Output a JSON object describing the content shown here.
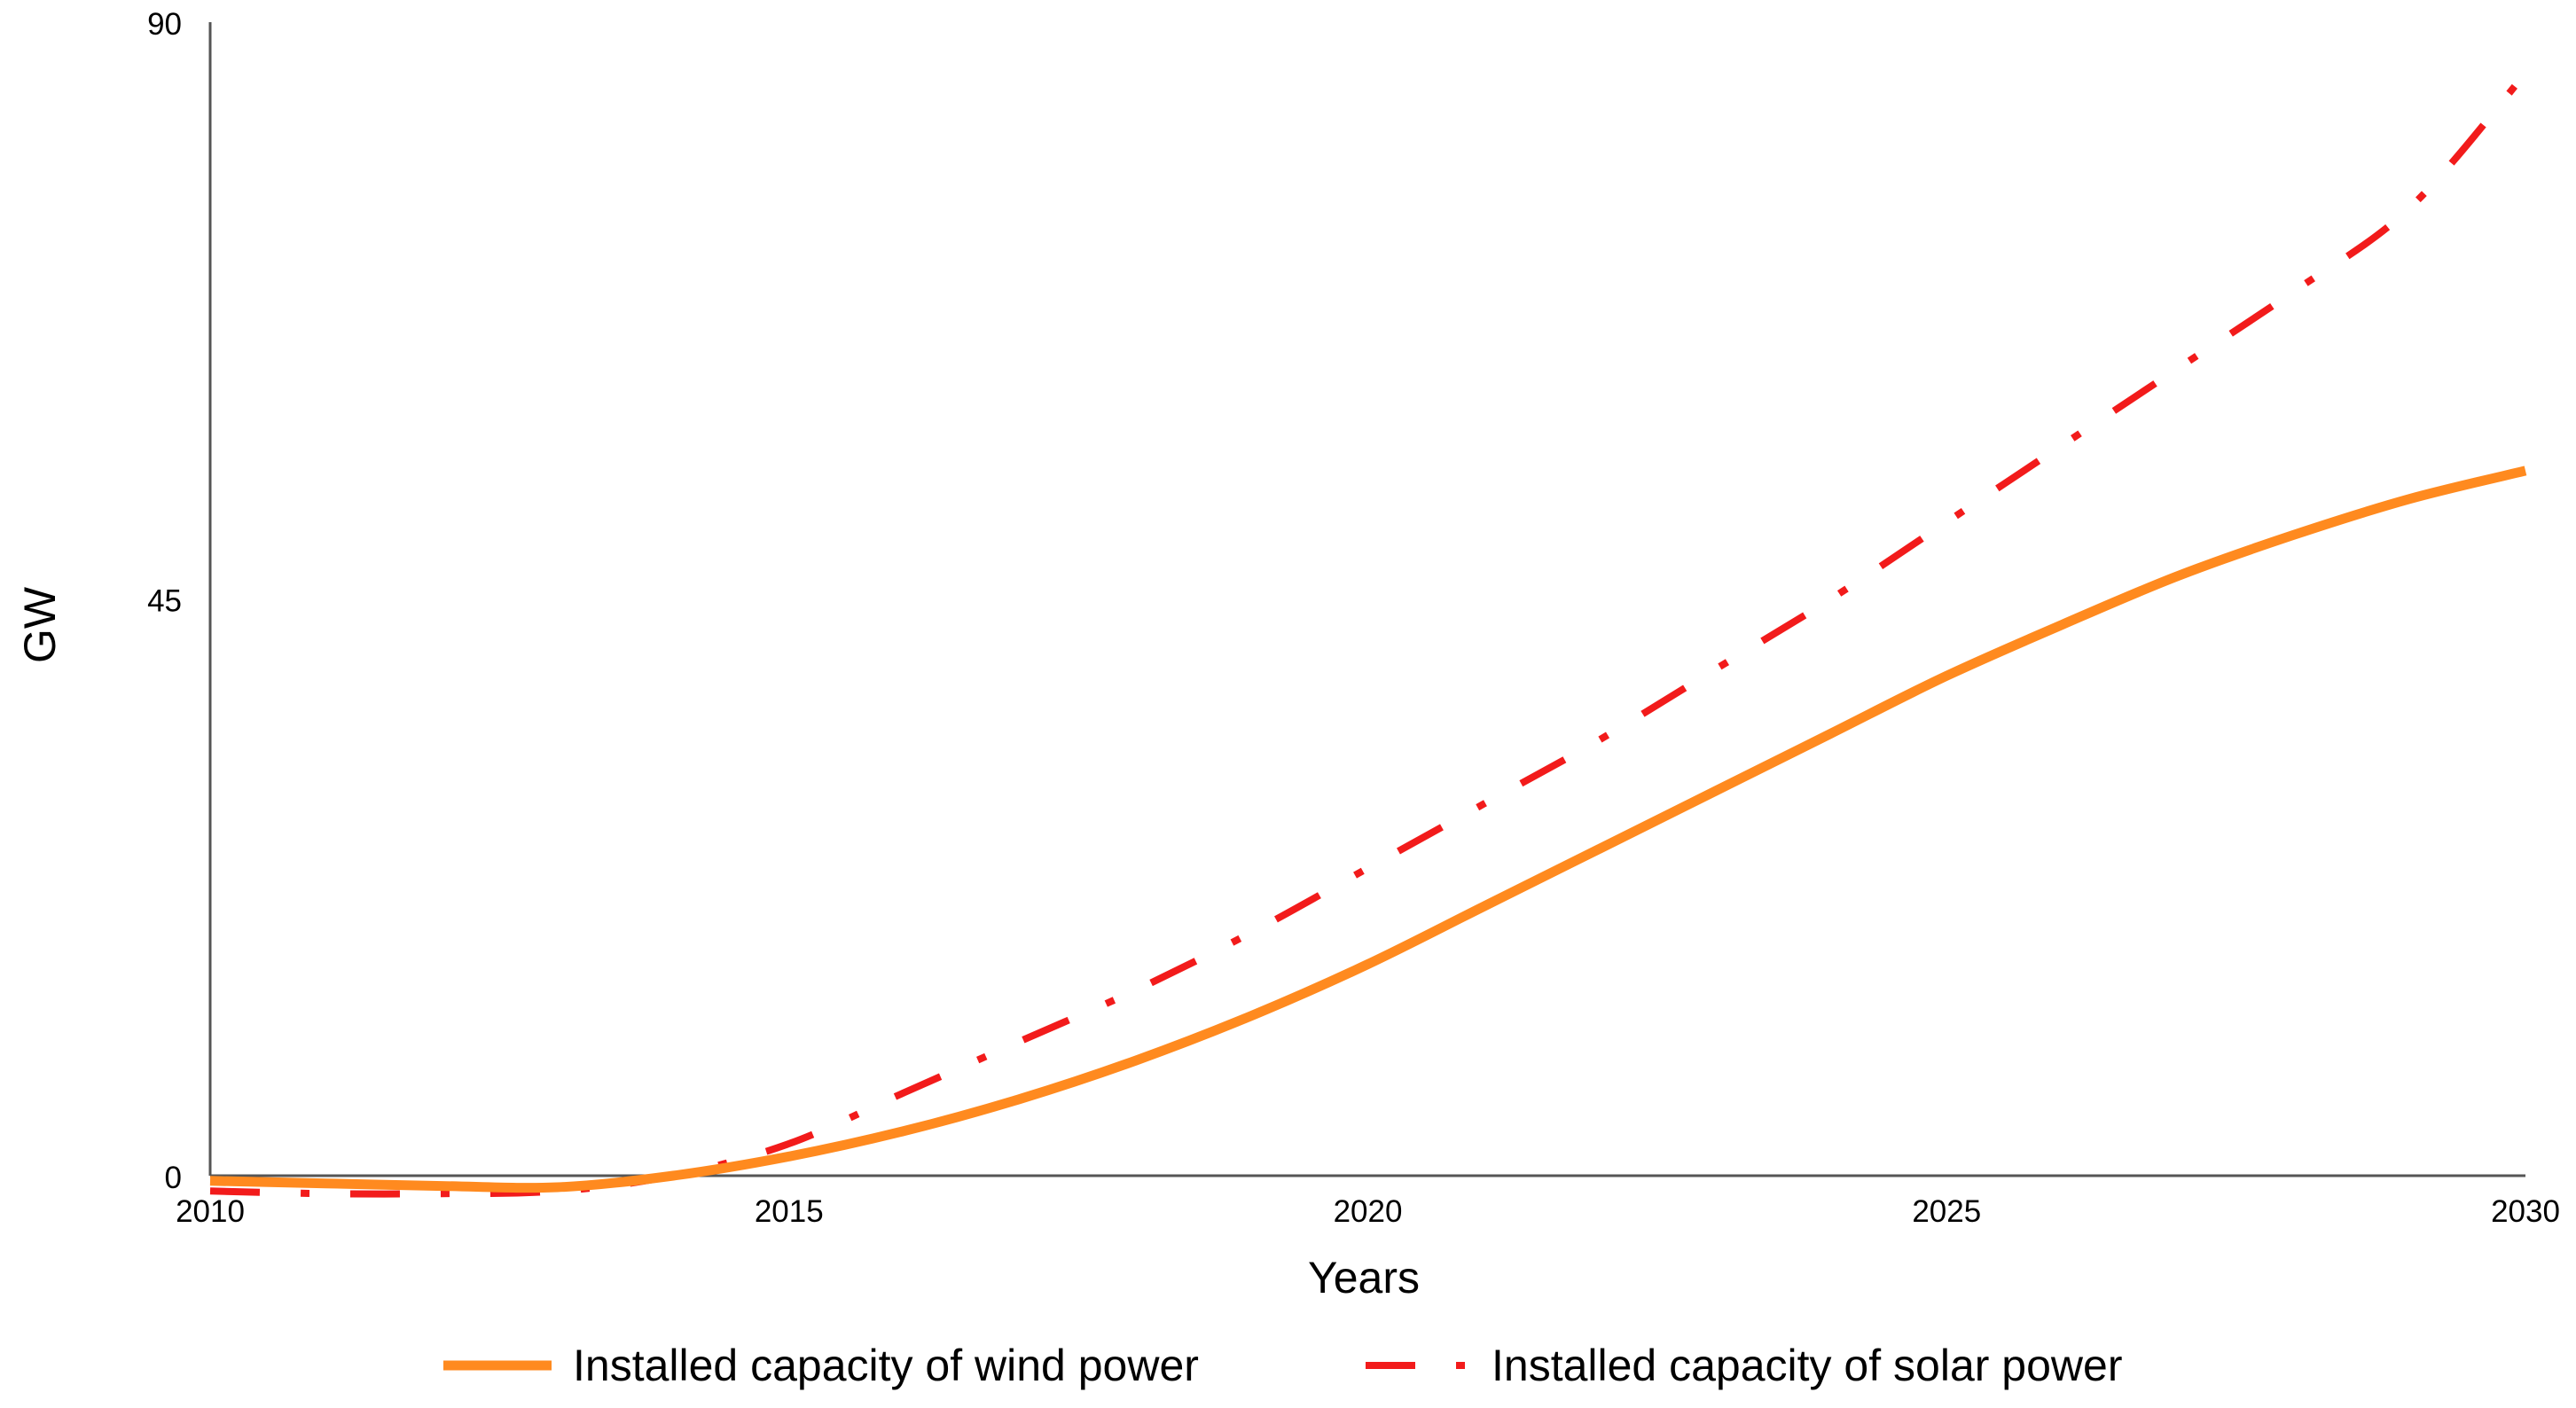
{
  "chart_data": {
    "type": "line",
    "title": "",
    "xlabel": "Years",
    "ylabel": "GW",
    "xlim": [
      2010,
      2030
    ],
    "ylim": [
      0,
      90
    ],
    "x_ticks": [
      "2010",
      "2015",
      "2020",
      "2025",
      "2030"
    ],
    "y_ticks": [
      "0",
      "45",
      "90"
    ],
    "grid": false,
    "legend_position": "bottom",
    "series": [
      {
        "name": "Installed capacity of wind power",
        "style": "solid",
        "color": "#FF8A1F",
        "x": [
          2010,
          2011,
          2012,
          2013,
          2014,
          2015,
          2016,
          2017,
          2018,
          2019,
          2020,
          2021,
          2022,
          2023,
          2024,
          2025,
          2026,
          2027,
          2028,
          2029,
          2030
        ],
        "y": [
          -0.4,
          -0.6,
          -0.8,
          -0.9,
          0,
          1.5,
          3.5,
          6,
          9,
          12.5,
          16.5,
          21,
          25.5,
          30,
          34.5,
          39,
          43,
          46.8,
          50,
          52.8,
          55
        ]
      },
      {
        "name": "Installed capacity of solar power",
        "style": "dashdot",
        "color": "#F21B1B",
        "x": [
          2010,
          2011,
          2012,
          2013,
          2014,
          2015,
          2016,
          2017,
          2018,
          2019,
          2020,
          2021,
          2022,
          2023,
          2024,
          2025,
          2026,
          2027,
          2028,
          2029,
          2030
        ],
        "y": [
          -1.2,
          -1.4,
          -1.4,
          -1.2,
          0,
          2.5,
          6.5,
          10.5,
          14.5,
          19,
          24,
          29,
          34,
          39.5,
          45,
          51,
          57,
          63,
          69,
          75.5,
          86
        ]
      }
    ]
  }
}
